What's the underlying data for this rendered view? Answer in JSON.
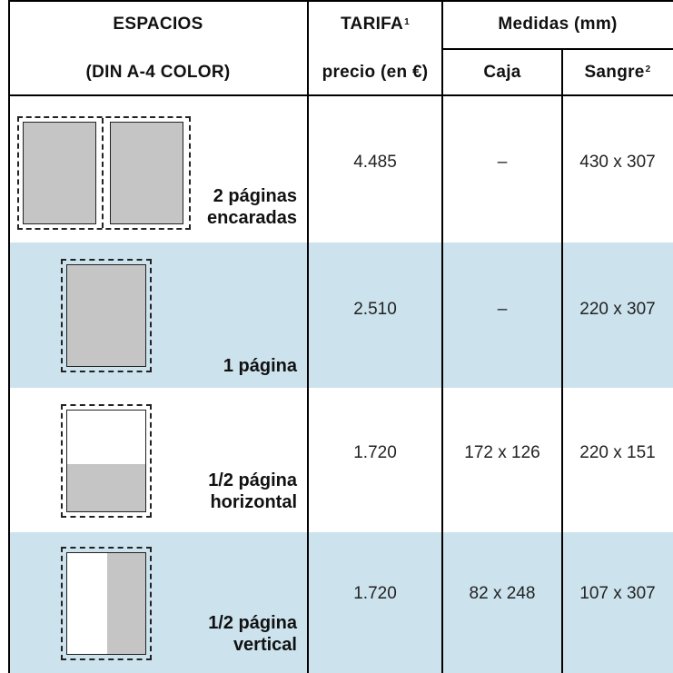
{
  "header": {
    "espacios_label": "ESPACIOS",
    "din_label": "(DIN A-4  COLOR)",
    "tarifa_label": "TARIFA",
    "tarifa_sup": "1",
    "precio_label": "precio (en €)",
    "medidas_label": "Medidas (mm)",
    "caja_label": "Caja",
    "sangre_label": "Sangre",
    "sangre_sup": "2"
  },
  "rows": [
    {
      "label_line1": "2 páginas",
      "label_line2": "encaradas",
      "precio": "4.485",
      "caja": "–",
      "sangre": "430 x 307",
      "thumb": "double-page-icon",
      "fill_fraction": 1.0,
      "bg": "#ffffff"
    },
    {
      "label_line1": "",
      "label_line2": "1 página",
      "precio": "2.510",
      "caja": "–",
      "sangre": "220 x 307",
      "thumb": "single-page-icon",
      "fill_fraction": 1.0,
      "bg": "#cce3ee"
    },
    {
      "label_line1": "1/2 página",
      "label_line2": "horizontal",
      "precio": "1.720",
      "caja": "172 x 126",
      "sangre": "220 x 151",
      "thumb": "half-page-horizontal-icon",
      "fill_fraction": 0.5,
      "bg": "#ffffff"
    },
    {
      "label_line1": "1/2 página",
      "label_line2": "vertical",
      "precio": "1.720",
      "caja": "82 x 248",
      "sangre": "107 x 307",
      "thumb": "half-page-vertical-icon",
      "fill_fraction": 0.5,
      "bg": "#cce3ee"
    }
  ]
}
